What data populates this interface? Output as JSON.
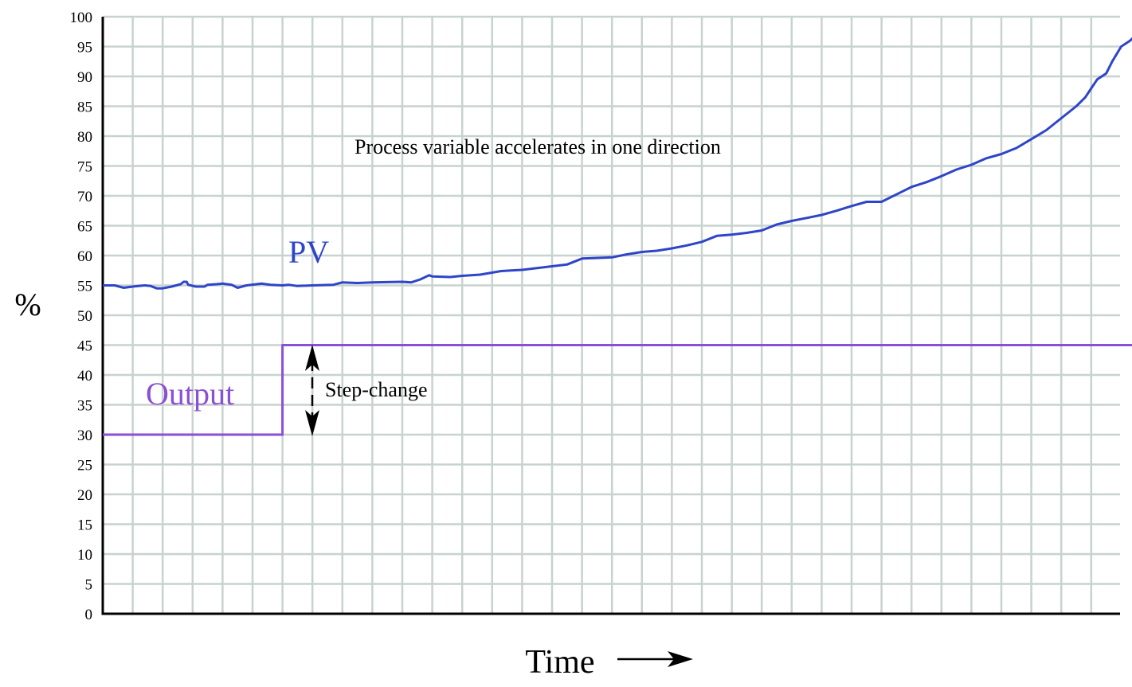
{
  "chart_data": {
    "type": "line",
    "ylabel": "%",
    "xlabel": "Time",
    "ylim": [
      0,
      100
    ],
    "y_ticks": [
      "0",
      "5",
      "10",
      "15",
      "20",
      "25",
      "30",
      "35",
      "40",
      "45",
      "50",
      "55",
      "60",
      "65",
      "70",
      "75",
      "80",
      "85",
      "90",
      "95",
      "100"
    ],
    "xlim": [
      0,
      34
    ],
    "grid": true,
    "annotations": {
      "pv_trend": "Process variable accelerates in one direction",
      "step": "Step-change"
    },
    "series": [
      {
        "name": "PV",
        "color": "#2e45c8",
        "points": [
          [
            0,
            55
          ],
          [
            0.4,
            55
          ],
          [
            0.7,
            54.6
          ],
          [
            1.0,
            54.8
          ],
          [
            1.4,
            55
          ],
          [
            1.6,
            54.9
          ],
          [
            1.8,
            54.5
          ],
          [
            2.0,
            54.5
          ],
          [
            2.3,
            54.8
          ],
          [
            2.6,
            55.2
          ],
          [
            2.7,
            55.6
          ],
          [
            2.8,
            55.6
          ],
          [
            2.85,
            55.1
          ],
          [
            3.1,
            54.8
          ],
          [
            3.4,
            54.8
          ],
          [
            3.5,
            55.1
          ],
          [
            3.8,
            55.2
          ],
          [
            4.0,
            55.3
          ],
          [
            4.3,
            55.1
          ],
          [
            4.5,
            54.6
          ],
          [
            4.8,
            55
          ],
          [
            5.3,
            55.3
          ],
          [
            5.6,
            55.1
          ],
          [
            6.0,
            55
          ],
          [
            6.2,
            55.1
          ],
          [
            6.5,
            54.9
          ],
          [
            7.0,
            55
          ],
          [
            7.7,
            55.1
          ],
          [
            8.0,
            55.5
          ],
          [
            8.5,
            55.4
          ],
          [
            9.0,
            55.5
          ],
          [
            10.0,
            55.6
          ],
          [
            10.3,
            55.5
          ],
          [
            10.6,
            56
          ],
          [
            10.9,
            56.7
          ],
          [
            11.0,
            56.5
          ],
          [
            11.6,
            56.4
          ],
          [
            12.0,
            56.6
          ],
          [
            12.6,
            56.8
          ],
          [
            13.3,
            57.4
          ],
          [
            14.0,
            57.6
          ],
          [
            15.0,
            58.2
          ],
          [
            15.5,
            58.5
          ],
          [
            16.0,
            59.5
          ],
          [
            17.0,
            59.7
          ],
          [
            17.5,
            60.2
          ],
          [
            18.0,
            60.6
          ],
          [
            18.5,
            60.8
          ],
          [
            19.0,
            61.2
          ],
          [
            19.5,
            61.7
          ],
          [
            20.0,
            62.3
          ],
          [
            20.5,
            63.3
          ],
          [
            21.0,
            63.5
          ],
          [
            21.5,
            63.8
          ],
          [
            22.0,
            64.2
          ],
          [
            22.5,
            65.2
          ],
          [
            23.0,
            65.8
          ],
          [
            23.5,
            66.3
          ],
          [
            24.0,
            66.8
          ],
          [
            24.5,
            67.5
          ],
          [
            25.0,
            68.3
          ],
          [
            25.5,
            69.0
          ],
          [
            26.0,
            69.0
          ],
          [
            26.6,
            70.5
          ],
          [
            27.0,
            71.5
          ],
          [
            27.5,
            72.3
          ],
          [
            28.0,
            73.3
          ],
          [
            28.5,
            74.4
          ],
          [
            29.0,
            75.2
          ],
          [
            29.5,
            76.3
          ],
          [
            30.0,
            77.0
          ],
          [
            30.5,
            78.0
          ],
          [
            31.0,
            79.5
          ],
          [
            31.5,
            81.0
          ],
          [
            32.0,
            83.0
          ],
          [
            32.5,
            85.0
          ],
          [
            32.8,
            86.5
          ],
          [
            33.0,
            88.0
          ],
          [
            33.2,
            89.5
          ],
          [
            33.5,
            90.5
          ],
          [
            33.7,
            92.5
          ],
          [
            34.0,
            95.0
          ],
          [
            34.3,
            96.0
          ],
          [
            34.5,
            97.0
          ]
        ]
      },
      {
        "name": "Output",
        "color": "#8a4fd6",
        "points": [
          [
            0,
            30
          ],
          [
            6,
            30
          ],
          [
            6,
            45
          ],
          [
            34.5,
            45
          ]
        ]
      }
    ]
  }
}
